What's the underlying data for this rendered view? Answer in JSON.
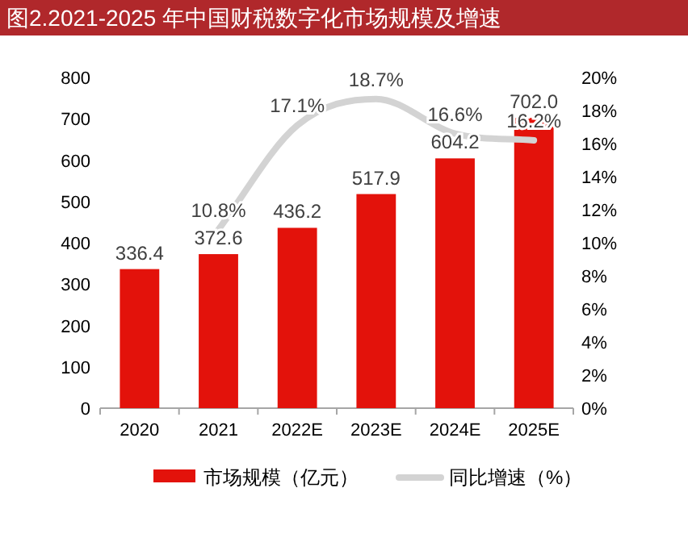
{
  "chart_data": {
    "type": "bar",
    "title": "图2.2021-2025 年中国财税数字化市场规模及增速",
    "categories": [
      "2020",
      "2021",
      "2022E",
      "2023E",
      "2024E",
      "2025E"
    ],
    "series": [
      {
        "name": "市场规模（亿元）",
        "color": "#e3120b",
        "values": [
          336.4,
          372.6,
          436.2,
          517.9,
          604.2,
          702.0
        ],
        "value_labels": [
          "336.4",
          "372.6",
          "436.2",
          "517.9",
          "604.2",
          "702.0"
        ]
      },
      {
        "name": "同比增速（%）",
        "type": "line",
        "axis": "y2",
        "color": "#d3d3d3",
        "values": [
          null,
          10.8,
          17.1,
          18.7,
          16.6,
          16.2
        ],
        "value_labels": [
          null,
          "10.8%",
          "17.1%",
          "18.7%",
          "16.6%",
          "16.2%"
        ]
      }
    ],
    "ylim": [
      0,
      800
    ],
    "yticks": [
      0,
      100,
      200,
      300,
      400,
      500,
      600,
      700,
      800
    ],
    "y2lim": [
      0,
      20
    ],
    "y2ticks": [
      {
        "value": 0,
        "label": "0%"
      },
      {
        "value": 2,
        "label": "2%"
      },
      {
        "value": 4,
        "label": "4%"
      },
      {
        "value": 6,
        "label": "6%"
      },
      {
        "value": 8,
        "label": "8%"
      },
      {
        "value": 10,
        "label": "10%"
      },
      {
        "value": 12,
        "label": "12%"
      },
      {
        "value": 14,
        "label": "14%"
      },
      {
        "value": 16,
        "label": "16%"
      },
      {
        "value": 18,
        "label": "18%"
      },
      {
        "value": 20,
        "label": "20%"
      }
    ],
    "legend": "bottom",
    "grid": false,
    "marker": "none"
  }
}
